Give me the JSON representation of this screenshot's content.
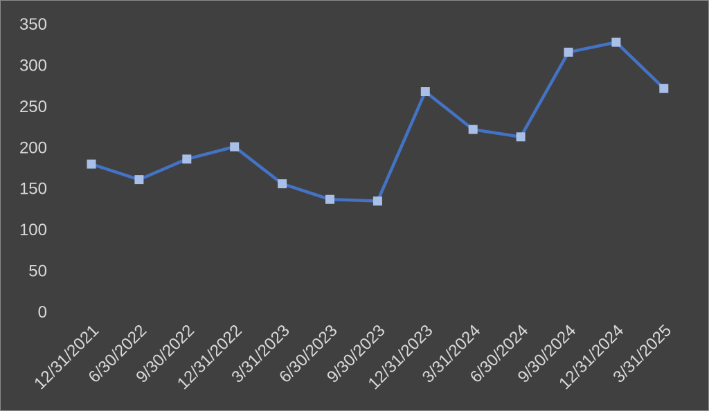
{
  "colors": {
    "background": "#404040",
    "border": "#8c8c8c",
    "line": "#4472c4",
    "marker": "#a9bfe8",
    "text": "#d9d9d9"
  },
  "chart_data": {
    "type": "line",
    "title": "",
    "xlabel": "",
    "ylabel": "",
    "categories": [
      "12/31/2021",
      "6/30/2022",
      "9/30/2022",
      "12/31/2022",
      "3/31/2023",
      "6/30/2023",
      "9/30/2023",
      "12/31/2023",
      "3/31/2024",
      "6/30/2024",
      "9/30/2024",
      "12/31/2024",
      "3/31/2025"
    ],
    "y_ticks": [
      "0",
      "50",
      "100",
      "150",
      "200",
      "250",
      "300",
      "350"
    ],
    "ylim": [
      0,
      350
    ],
    "grid": false,
    "legend": "none",
    "marker": "square",
    "series": [
      {
        "values": [
          180,
          161,
          186,
          201,
          156,
          137,
          135,
          268,
          222,
          213,
          316,
          328,
          272
        ]
      }
    ]
  }
}
